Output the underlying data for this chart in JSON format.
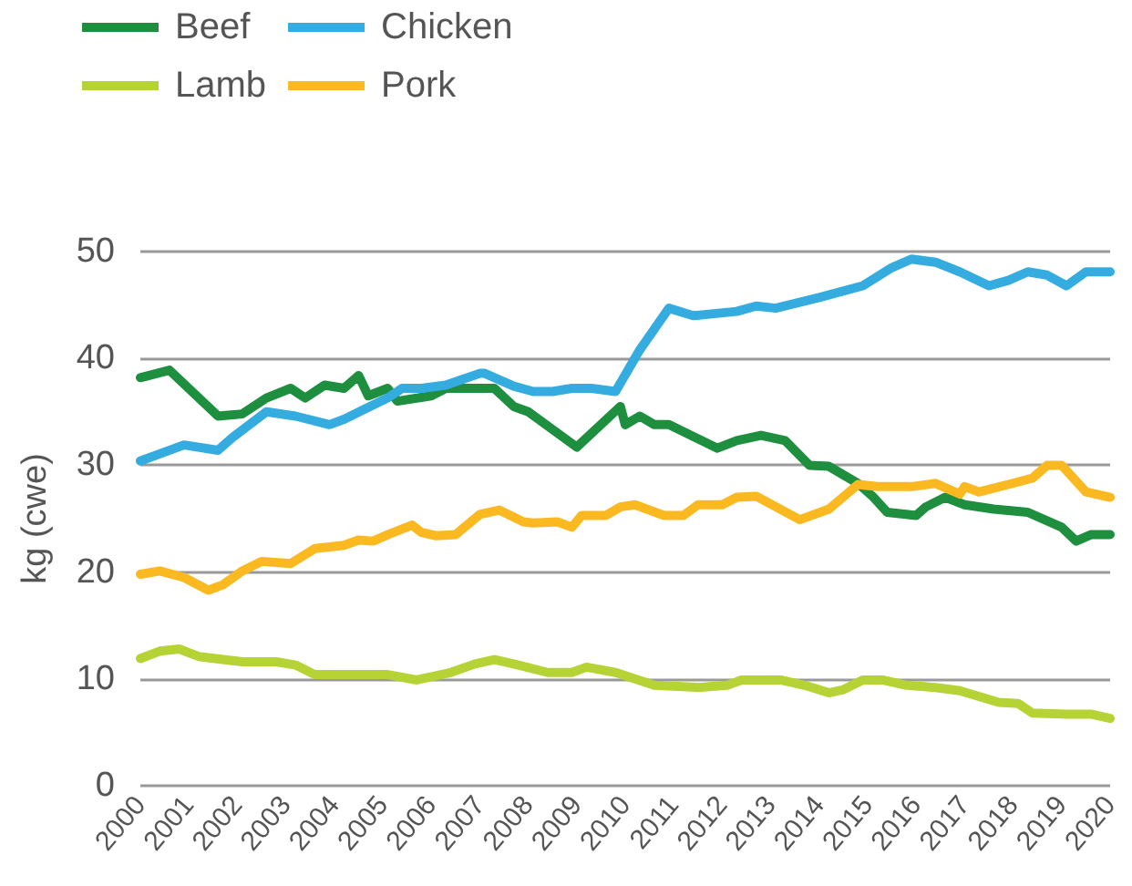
{
  "chart_data": {
    "type": "line",
    "ylabel": "kg (cwe)",
    "xlim": [
      2000,
      2020
    ],
    "xticks": [
      2000,
      2001,
      2002,
      2003,
      2004,
      2005,
      2006,
      2007,
      2008,
      2009,
      2010,
      2011,
      2012,
      2013,
      2014,
      2015,
      2016,
      2017,
      2018,
      2019,
      2020
    ],
    "ylim": [
      0,
      50
    ],
    "yticks": [
      0,
      10,
      20,
      30,
      40,
      50
    ],
    "grid": "y",
    "legend": "top left",
    "marker": "none",
    "line_style": "solid",
    "series": [
      {
        "name": "Beef",
        "color": "#1e8f3e",
        "x": [
          2000,
          2000.6,
          2001.6,
          2002.1,
          2002.6,
          2003.1,
          2003.4,
          2003.8,
          2004.2,
          2004.5,
          2004.7,
          2005.1,
          2005.3,
          2006,
          2006.3,
          2007.3,
          2007.7,
          2008,
          2009,
          2009.9,
          2010,
          2010.3,
          2010.6,
          2010.9,
          2011.9,
          2012.3,
          2012.8,
          2013.3,
          2013.8,
          2014.2,
          2014.8,
          2015.1,
          2015.4,
          2016,
          2016.2,
          2016.6,
          2017,
          2017.6,
          2018.3,
          2019,
          2019.3,
          2019.6,
          2020
        ],
        "values": [
          38.2,
          38.9,
          34.6,
          34.8,
          36.3,
          37.2,
          36.3,
          37.5,
          37.2,
          38.4,
          36.5,
          37.2,
          36,
          36.5,
          37.2,
          37.2,
          35.5,
          35,
          31.7,
          35.5,
          33.8,
          34.6,
          33.8,
          33.8,
          31.6,
          32.3,
          32.8,
          32.3,
          30,
          29.9,
          28.3,
          27.1,
          25.6,
          25.3,
          26.1,
          27,
          26.3,
          25.9,
          25.6,
          24.2,
          22.9,
          23.5,
          23.5
        ]
      },
      {
        "name": "Lamb",
        "color": "#b5d334",
        "x": [
          2000,
          2000.4,
          2000.8,
          2001.2,
          2002.1,
          2002.8,
          2003.2,
          2003.6,
          2005.1,
          2005.7,
          2006.4,
          2006.9,
          2007.3,
          2007.7,
          2008.4,
          2008.9,
          2009.2,
          2009.8,
          2010.6,
          2011.5,
          2012.1,
          2012.4,
          2013.2,
          2013.7,
          2014.2,
          2014.5,
          2014.9,
          2015.3,
          2015.8,
          2016.4,
          2016.9,
          2017.7,
          2018.1,
          2018.4,
          2019.1,
          2019.6,
          2020
        ],
        "values": [
          11.9,
          12.6,
          12.8,
          12.1,
          11.6,
          11.6,
          11.3,
          10.4,
          10.4,
          9.9,
          10.6,
          11.4,
          11.8,
          11.4,
          10.6,
          10.6,
          11.1,
          10.6,
          9.4,
          9.2,
          9.4,
          9.9,
          9.9,
          9.4,
          8.7,
          9,
          9.9,
          9.9,
          9.4,
          9.2,
          8.9,
          7.8,
          7.7,
          6.8,
          6.7,
          6.7,
          6.3
        ]
      },
      {
        "name": "Chicken",
        "color": "#34ace0",
        "x": [
          2000,
          2000.9,
          2001.6,
          2001.9,
          2002.6,
          2003.2,
          2003.9,
          2004.2,
          2004.6,
          2005.1,
          2005.4,
          2005.8,
          2006.3,
          2007,
          2007.1,
          2007.7,
          2008.1,
          2008.5,
          2008.9,
          2009.3,
          2009.8,
          2010.3,
          2010.9,
          2011.4,
          2012.3,
          2012.7,
          2013.1,
          2014,
          2014.9,
          2015.5,
          2015.9,
          2016.4,
          2016.9,
          2017.5,
          2017.9,
          2018.3,
          2018.7,
          2019.1,
          2019.5,
          2020
        ],
        "values": [
          30.4,
          31.9,
          31.4,
          32.6,
          35,
          34.6,
          33.8,
          34.3,
          35.2,
          36.3,
          37.2,
          37.2,
          37.5,
          38.6,
          38.6,
          37.4,
          36.9,
          36.9,
          37.2,
          37.2,
          36.9,
          40.8,
          44.7,
          44,
          44.4,
          44.9,
          44.7,
          45.7,
          46.8,
          48.5,
          49.3,
          49,
          48.1,
          46.8,
          47.3,
          48.1,
          47.8,
          46.8,
          48.1,
          48.1
        ]
      },
      {
        "name": "Pork",
        "color": "#fbb921",
        "x": [
          2000,
          2000.4,
          2000.9,
          2001.4,
          2001.7,
          2002.1,
          2002.5,
          2003.1,
          2003.6,
          2004.2,
          2004.5,
          2004.8,
          2005.1,
          2005.6,
          2005.8,
          2006.1,
          2006.5,
          2007,
          2007.4,
          2007.9,
          2008.1,
          2008.6,
          2008.9,
          2009.1,
          2009.6,
          2009.9,
          2010.2,
          2010.8,
          2011.2,
          2011.5,
          2012,
          2012.3,
          2012.7,
          2013.6,
          2014.2,
          2014.8,
          2015.2,
          2015.9,
          2016.4,
          2016.9,
          2017,
          2017.3,
          2017.9,
          2018.4,
          2018.7,
          2019,
          2019.5,
          2020
        ],
        "values": [
          19.8,
          20.1,
          19.5,
          18.3,
          18.8,
          20.1,
          21,
          20.8,
          22.2,
          22.5,
          23,
          22.9,
          23.5,
          24.4,
          23.7,
          23.4,
          23.5,
          25.4,
          25.8,
          24.7,
          24.6,
          24.7,
          24.2,
          25.3,
          25.3,
          26.1,
          26.3,
          25.3,
          25.3,
          26.3,
          26.3,
          27,
          27.1,
          24.9,
          25.9,
          28.2,
          28,
          28,
          28.3,
          27.3,
          28,
          27.5,
          28.2,
          28.8,
          30,
          30,
          27.5,
          27
        ]
      }
    ]
  }
}
